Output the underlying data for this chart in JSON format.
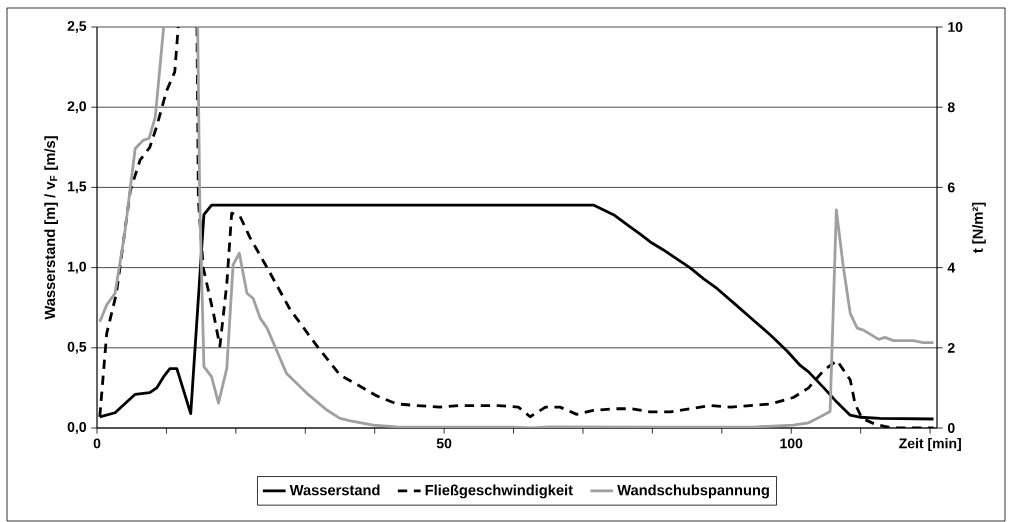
{
  "chart_data": {
    "type": "line",
    "xlabel": "Zeit [min]",
    "ylabel": "Wasserstand [m] / v$_{F}$ [m/s]",
    "y2label": "t [N/m²]",
    "xlim": [
      0,
      121
    ],
    "xticks": [
      0,
      {
        "value": 10,
        "label": null
      },
      {
        "value": 20,
        "label": null
      },
      {
        "value": 30,
        "label": null
      },
      {
        "value": 40,
        "label": null
      },
      50,
      {
        "value": 60,
        "label": null
      },
      {
        "value": 70,
        "label": null
      },
      {
        "value": 80,
        "label": null
      },
      {
        "value": 90,
        "label": null
      },
      100,
      {
        "value": 110,
        "label": null
      },
      {
        "value": 120,
        "label": null
      }
    ],
    "ylim": [
      0,
      2.5
    ],
    "yticks": [
      {
        "value": 0,
        "label": "0,0"
      },
      {
        "value": 0.5,
        "label": "0,5"
      },
      {
        "value": 1,
        "label": "1,0"
      },
      {
        "value": 1.5,
        "label": "1,5"
      },
      {
        "value": 2,
        "label": "2,0"
      },
      {
        "value": 2.5,
        "label": "2,5"
      }
    ],
    "y2lim": [
      0,
      10
    ],
    "y2ticks": [
      0,
      2,
      4,
      6,
      8,
      10
    ],
    "grid": "y",
    "legend": "bottom",
    "series": [
      {
        "name": "Wasserstand",
        "color": "#000000",
        "line_style": "solid",
        "x": [
          0.4,
          2.6,
          5.5,
          7.6,
          8.6,
          9.6,
          10.5,
          11.5,
          13.5,
          15.4,
          16.5,
          71.5,
          74.4,
          76.6,
          78.2,
          79.7,
          81.6,
          84,
          85.4,
          87.4,
          89.3,
          91.7,
          94.6,
          97,
          99.4,
          101.3,
          102.5,
          104.7,
          106.6,
          108.5,
          110,
          112.8,
          120.5
        ],
        "values": [
          0.07,
          0.095,
          0.21,
          0.22,
          0.25,
          0.32,
          0.37,
          0.37,
          0.09,
          1.33,
          1.39,
          1.39,
          1.33,
          1.26,
          1.21,
          1.16,
          1.11,
          1.04,
          1.0,
          0.93,
          0.87,
          0.78,
          0.67,
          0.58,
          0.48,
          0.39,
          0.35,
          0.25,
          0.16,
          0.08,
          0.067,
          0.06,
          0.056
        ]
      },
      {
        "name": "Fließgeschwindigkeit",
        "color": "#000000",
        "line_style": "dashed",
        "x": [
          0.4,
          1.4,
          2.8,
          4.8,
          6.2,
          7.6,
          8.6,
          10,
          11.2,
          11.7,
          13,
          14.4,
          14.6,
          15.3,
          16.8,
          17.7,
          18.7,
          19.4,
          20.6,
          22,
          24.5,
          27.8,
          31.7,
          35,
          37.9,
          40.3,
          43.2,
          46.1,
          49.4,
          52.1,
          55,
          57.8,
          60.7,
          62.4,
          64.6,
          66.7,
          69.1,
          71.5,
          74.4,
          77,
          79.7,
          82.6,
          85.4,
          88.3,
          91.2,
          94.1,
          97,
          100.3,
          102.5,
          104.7,
          106.6,
          108.5,
          109.2,
          110.2,
          112.3,
          114.7,
          120.5
        ],
        "values": [
          0.07,
          0.59,
          0.84,
          1.48,
          1.67,
          1.75,
          1.88,
          2.1,
          2.22,
          2.5,
          null,
          2.5,
          1.42,
          1.0,
          0.71,
          0.51,
          0.9,
          1.34,
          1.32,
          1.19,
          1.0,
          0.74,
          0.51,
          0.33,
          0.26,
          0.2,
          0.15,
          0.14,
          0.13,
          0.14,
          0.14,
          0.14,
          0.13,
          0.07,
          0.13,
          0.13,
          0.085,
          0.11,
          0.12,
          0.12,
          0.1,
          0.1,
          0.12,
          0.14,
          0.13,
          0.14,
          0.15,
          0.19,
          0.25,
          0.36,
          0.42,
          0.3,
          0.15,
          0.06,
          0.02,
          0.0,
          0.0
        ]
      },
      {
        "name": "Wandschubspannung",
        "axis": "y2",
        "color": "#a0a0a0",
        "line_style": "solid",
        "x": [
          0.4,
          1.4,
          2.6,
          4,
          5.5,
          6.7,
          7.5,
          8.4,
          9.6,
          12,
          14.5,
          14.8,
          15.4,
          16.5,
          17.5,
          18.7,
          19.6,
          20.5,
          21.6,
          22.5,
          23.5,
          24.5,
          27.3,
          30.2,
          33.1,
          35,
          36.5,
          39.8,
          43.2,
          50,
          60,
          62.5,
          65,
          80,
          95,
          100.3,
          102.5,
          104.2,
          105.6,
          106.5,
          107.5,
          108.5,
          109.5,
          110.4,
          112.6,
          113.5,
          114.7,
          117.6,
          119,
          120.5
        ],
        "values": [
          2.65,
          3.07,
          3.36,
          4.86,
          6.97,
          7.18,
          7.22,
          7.76,
          10,
          null,
          10,
          5.69,
          1.53,
          1.28,
          0.62,
          1.49,
          4.07,
          4.36,
          3.36,
          3.23,
          2.74,
          2.49,
          1.36,
          0.87,
          0.45,
          0.24,
          0.18,
          0.07,
          0.03,
          0.02,
          0.02,
          0.0,
          0.03,
          0.02,
          0.03,
          0.07,
          0.13,
          0.28,
          0.41,
          5.44,
          4.02,
          2.86,
          2.49,
          2.44,
          2.21,
          2.26,
          2.18,
          2.18,
          2.13,
          2.13
        ]
      }
    ]
  }
}
